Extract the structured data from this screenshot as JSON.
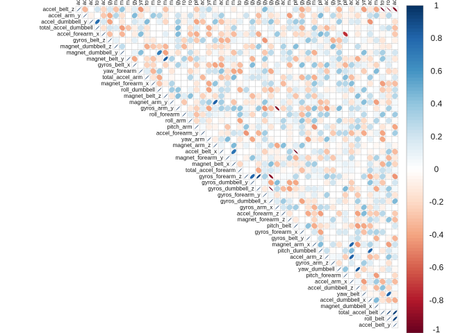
{
  "chart_data": {
    "type": "heatmap",
    "subtype": "upper-triangular correlation matrix (ellipse glyphs)",
    "variables": [
      "accel_belt_z",
      "accel_arm_y",
      "accel_dumbbell_y",
      "total_accel_dumbbell",
      "accel_forearm_x",
      "gyros_belt_z",
      "magnet_dumbbell_z",
      "magnet_dumbbell_y",
      "magnet_belt_y",
      "gyros_belt_x",
      "yaw_forearm",
      "total_accel_arm",
      "magnet_forearm_x",
      "roll_dumbbell",
      "magnet_belt_z",
      "magnet_arm_y",
      "gyros_arm_y",
      "roll_forearm",
      "roll_arm",
      "pitch_arm",
      "accel_forearm_y",
      "yaw_arm",
      "magnet_arm_z",
      "accel_belt_x",
      "magnet_forearm_y",
      "magnet_belt_x",
      "total_accel_forearm",
      "gyros_forearm_z",
      "gyros_dumbbell_y",
      "gyros_dumbbell_z",
      "gyros_forearm_y",
      "gyros_dumbbell_x",
      "gyros_arm_x",
      "accel_forearm_z",
      "magnet_forearm_z",
      "pitch_belt",
      "gyros_forearm_x",
      "gyros_belt_y",
      "magnet_arm_x",
      "pitch_dumbbell",
      "accel_arm_z",
      "gyros_arm_z",
      "yaw_dumbbell",
      "pitch_forearm",
      "accel_arm_x",
      "accel_dumbbell_z",
      "yaw_belt",
      "accel_dumbbell_x",
      "magnet_dumbbell_x",
      "total_accel_belt",
      "roll_belt",
      "accel_belt_y"
    ],
    "notable_correlations": [
      {
        "a": "accel_belt_z",
        "b": "accel_belt_y",
        "r": -0.92
      },
      {
        "a": "accel_belt_z",
        "b": "roll_belt",
        "r": -0.99
      },
      {
        "a": "accel_belt_z",
        "b": "total_accel_belt",
        "r": -0.97
      },
      {
        "a": "roll_belt",
        "b": "accel_belt_y",
        "r": 0.92
      },
      {
        "a": "total_accel_belt",
        "b": "accel_belt_y",
        "r": 0.93
      },
      {
        "a": "total_accel_belt",
        "b": "roll_belt",
        "r": 0.98
      },
      {
        "a": "yaw_belt",
        "b": "roll_belt",
        "r": 0.81
      },
      {
        "a": "gyros_forearm_z",
        "b": "gyros_dumbbell_z",
        "r": 0.93
      },
      {
        "a": "gyros_forearm_z",
        "b": "gyros_dumbbell_x",
        "r": -0.91
      },
      {
        "a": "gyros_dumbbell_y",
        "b": "gyros_forearm_z",
        "r": 0.8
      },
      {
        "a": "gyros_dumbbell_z",
        "b": "gyros_dumbbell_x",
        "r": -0.98
      },
      {
        "a": "gyros_arm_x",
        "b": "gyros_arm_y",
        "r": -0.92
      },
      {
        "a": "magnet_arm_x",
        "b": "accel_arm_x",
        "r": 0.81
      },
      {
        "a": "magnet_arm_y",
        "b": "magnet_arm_z",
        "r": 0.81
      },
      {
        "a": "accel_belt_x",
        "b": "pitch_belt",
        "r": -0.97
      },
      {
        "a": "accel_belt_x",
        "b": "magnet_belt_x",
        "r": 0.74
      },
      {
        "a": "pitch_dumbbell",
        "b": "accel_dumbbell_x",
        "r": 0.81
      },
      {
        "a": "yaw_dumbbell",
        "b": "accel_dumbbell_z",
        "r": 0.85
      },
      {
        "a": "accel_arm_z",
        "b": "accel_arm_x",
        "r": 0.81
      },
      {
        "a": "magnet_belt_z",
        "b": "magnet_belt_y",
        "r": 0.84
      },
      {
        "a": "accel_dumbbell_y",
        "b": "total_accel_dumbbell",
        "r": 0.77
      },
      {
        "a": "accel_forearm_x",
        "b": "pitch_forearm",
        "r": -0.74
      },
      {
        "a": "magnet_dumbbell_y",
        "b": "roll_dumbbell",
        "r": 0.7
      }
    ],
    "colorbar": {
      "range": [
        -1,
        1
      ],
      "ticks": [
        "1",
        "0.8",
        "0.6",
        "0.4",
        "0.2",
        "0",
        "-0.2",
        "-0.4",
        "-0.6",
        "-0.8",
        "-1"
      ],
      "tick_values": [
        1,
        0.8,
        0.6,
        0.4,
        0.2,
        0,
        -0.2,
        -0.4,
        -0.6,
        -0.8,
        -1
      ],
      "colors": {
        "neg": "#67001F",
        "mid": "#FFFFFF",
        "pos": "#053061"
      }
    }
  }
}
